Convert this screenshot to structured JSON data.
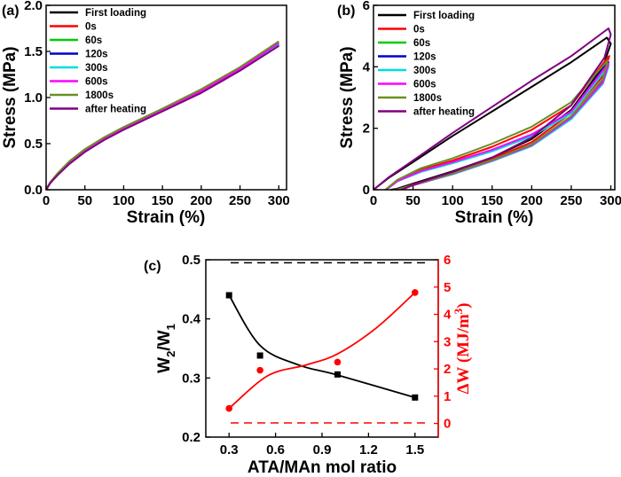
{
  "chart_data": [
    {
      "type": "line",
      "panel_label": "(a)",
      "xlabel": "Strain (%)",
      "ylabel": "Stress (MPa)",
      "xlim": [
        0,
        310
      ],
      "ylim": [
        0,
        2.0
      ],
      "xticks": [
        0,
        50,
        100,
        150,
        200,
        250,
        300
      ],
      "yticks": [
        0.0,
        0.5,
        1.0,
        1.5,
        2.0
      ],
      "xtick_labels": [
        "0",
        "50",
        "100",
        "150",
        "200",
        "250",
        "300"
      ],
      "ytick_labels": [
        "0.0",
        "0.5",
        "1.0",
        "1.5",
        "2.0"
      ],
      "legend_position": "top-left",
      "series": [
        {
          "name": "First loading",
          "color": "#000000",
          "x": [
            0,
            5,
            15,
            30,
            50,
            75,
            100,
            150,
            200,
            250,
            300
          ],
          "y": [
            0,
            0.07,
            0.17,
            0.29,
            0.42,
            0.55,
            0.66,
            0.86,
            1.06,
            1.3,
            1.57
          ]
        },
        {
          "name": "0s",
          "color": "#ff0000",
          "x": [
            0,
            5,
            15,
            30,
            50,
            75,
            100,
            150,
            200,
            250,
            300
          ],
          "y": [
            0,
            0.07,
            0.17,
            0.29,
            0.42,
            0.55,
            0.66,
            0.86,
            1.07,
            1.31,
            1.58
          ]
        },
        {
          "name": "60s",
          "color": "#00cc00",
          "x": [
            0,
            5,
            15,
            30,
            50,
            75,
            100,
            150,
            200,
            250,
            300
          ],
          "y": [
            0,
            0.07,
            0.18,
            0.3,
            0.43,
            0.56,
            0.67,
            0.87,
            1.08,
            1.32,
            1.6
          ]
        },
        {
          "name": "120s",
          "color": "#0000cc",
          "x": [
            0,
            5,
            15,
            30,
            50,
            75,
            100,
            150,
            200,
            250,
            300
          ],
          "y": [
            0,
            0.07,
            0.17,
            0.29,
            0.42,
            0.55,
            0.66,
            0.86,
            1.06,
            1.3,
            1.57
          ]
        },
        {
          "name": "300s",
          "color": "#00dddd",
          "x": [
            0,
            5,
            15,
            30,
            50,
            75,
            100,
            150,
            200,
            250,
            300
          ],
          "y": [
            0,
            0.07,
            0.17,
            0.29,
            0.42,
            0.55,
            0.66,
            0.86,
            1.07,
            1.31,
            1.58
          ]
        },
        {
          "name": "600s",
          "color": "#ff00ff",
          "x": [
            0,
            5,
            15,
            30,
            50,
            75,
            100,
            150,
            200,
            250,
            300
          ],
          "y": [
            0,
            0.07,
            0.17,
            0.29,
            0.42,
            0.55,
            0.66,
            0.86,
            1.07,
            1.31,
            1.59
          ]
        },
        {
          "name": "1800s",
          "color": "#6b8e23",
          "x": [
            0,
            5,
            15,
            30,
            50,
            75,
            100,
            150,
            200,
            250,
            300
          ],
          "y": [
            0,
            0.08,
            0.18,
            0.31,
            0.44,
            0.57,
            0.68,
            0.88,
            1.09,
            1.33,
            1.61
          ]
        },
        {
          "name": "after heating",
          "color": "#800080",
          "x": [
            0,
            5,
            15,
            30,
            50,
            75,
            100,
            150,
            200,
            250,
            300
          ],
          "y": [
            0,
            0.07,
            0.16,
            0.28,
            0.41,
            0.54,
            0.65,
            0.85,
            1.05,
            1.29,
            1.56
          ]
        }
      ]
    },
    {
      "type": "line",
      "panel_label": "(b)",
      "xlabel": "Strain (%)",
      "ylabel": "Stress (MPa)",
      "xlim": [
        0,
        305
      ],
      "ylim": [
        0,
        6
      ],
      "xticks": [
        0,
        50,
        100,
        150,
        200,
        250,
        300
      ],
      "yticks": [
        0,
        2,
        4,
        6
      ],
      "xtick_labels": [
        "0",
        "50",
        "100",
        "150",
        "200",
        "250",
        "300"
      ],
      "ytick_labels": [
        "0",
        "2",
        "4",
        "6"
      ],
      "legend_position": "top-left",
      "series": [
        {
          "name": "First loading",
          "color": "#000000",
          "x": [
            0,
            20,
            50,
            100,
            150,
            200,
            250,
            295,
            300,
            290,
            250,
            200,
            150,
            100,
            50,
            28,
            22
          ],
          "y": [
            0,
            0.4,
            0.9,
            1.75,
            2.55,
            3.35,
            4.15,
            4.95,
            4.75,
            4.0,
            2.6,
            1.65,
            1.05,
            0.6,
            0.2,
            0.02,
            0
          ]
        },
        {
          "name": "0s",
          "color": "#ff0000",
          "x": [
            15,
            30,
            60,
            100,
            150,
            200,
            250,
            296,
            298,
            290,
            250,
            200,
            150,
            100,
            60,
            35,
            28
          ],
          "y": [
            0,
            0.3,
            0.65,
            0.95,
            1.4,
            1.95,
            2.75,
            4.3,
            4.35,
            3.7,
            2.5,
            1.55,
            1.0,
            0.55,
            0.25,
            0.05,
            0
          ]
        },
        {
          "name": "60s",
          "color": "#00cc00",
          "x": [
            16,
            30,
            60,
            100,
            150,
            200,
            250,
            295,
            297,
            290,
            250,
            200,
            150,
            100,
            60,
            36,
            30
          ],
          "y": [
            0,
            0.28,
            0.62,
            0.9,
            1.3,
            1.8,
            2.55,
            4.0,
            4.05,
            3.5,
            2.35,
            1.45,
            0.95,
            0.52,
            0.22,
            0.05,
            0
          ]
        },
        {
          "name": "120s",
          "color": "#0000cc",
          "x": [
            16,
            30,
            60,
            100,
            150,
            200,
            250,
            295,
            297,
            290,
            250,
            200,
            150,
            100,
            60,
            36,
            30
          ],
          "y": [
            0,
            0.28,
            0.6,
            0.88,
            1.28,
            1.78,
            2.52,
            4.1,
            4.15,
            3.55,
            2.35,
            1.45,
            0.95,
            0.52,
            0.22,
            0.05,
            0
          ]
        },
        {
          "name": "300s",
          "color": "#00dddd",
          "x": [
            16,
            30,
            60,
            100,
            150,
            200,
            250,
            295,
            297,
            290,
            250,
            200,
            150,
            100,
            60,
            36,
            30
          ],
          "y": [
            0,
            0.27,
            0.58,
            0.86,
            1.25,
            1.74,
            2.48,
            3.95,
            4.0,
            3.45,
            2.3,
            1.42,
            0.93,
            0.5,
            0.22,
            0.05,
            0
          ]
        },
        {
          "name": "600s",
          "color": "#ff00ff",
          "x": [
            16,
            30,
            60,
            100,
            150,
            200,
            250,
            295,
            297,
            290,
            250,
            200,
            150,
            100,
            60,
            36,
            30
          ],
          "y": [
            0,
            0.28,
            0.61,
            0.9,
            1.3,
            1.8,
            2.55,
            4.05,
            4.1,
            3.5,
            2.35,
            1.45,
            0.95,
            0.52,
            0.22,
            0.05,
            0
          ]
        },
        {
          "name": "1800s",
          "color": "#6b8e23",
          "x": [
            15,
            30,
            60,
            100,
            150,
            200,
            250,
            294,
            296,
            290,
            250,
            200,
            150,
            100,
            60,
            36,
            30
          ],
          "y": [
            0,
            0.32,
            0.7,
            1.02,
            1.5,
            2.05,
            2.85,
            4.15,
            4.2,
            3.6,
            2.4,
            1.48,
            0.97,
            0.53,
            0.23,
            0.05,
            0
          ]
        },
        {
          "name": "after heating",
          "color": "#800080",
          "x": [
            0,
            20,
            50,
            100,
            150,
            200,
            250,
            297,
            300,
            292,
            250,
            200,
            150,
            100,
            60,
            40,
            35
          ],
          "y": [
            0,
            0.42,
            0.95,
            1.85,
            2.7,
            3.55,
            4.35,
            5.25,
            5.05,
            4.3,
            2.75,
            1.7,
            1.05,
            0.58,
            0.25,
            0.05,
            0
          ]
        }
      ]
    },
    {
      "type": "scatter",
      "panel_label": "(c)",
      "xlabel": "ATA/MAn mol ratio",
      "ylabel_left": "W2/W1",
      "ylabel_right": "ΔW (MJ/m3)",
      "xlim": [
        0.15,
        1.65
      ],
      "ylim_left": [
        0.2,
        0.5
      ],
      "ylim_right": [
        -0.5,
        6
      ],
      "xticks": [
        0.3,
        0.6,
        0.9,
        1.2,
        1.5
      ],
      "xtick_labels": [
        "0.3",
        "0.6",
        "0.9",
        "1.2",
        "1.5"
      ],
      "yticks_left": [
        0.2,
        0.3,
        0.4,
        0.5
      ],
      "ytick_labels_left": [
        "0.2",
        "0.3",
        "0.4",
        "0.5"
      ],
      "yticks_right": [
        0,
        1,
        2,
        3,
        4,
        5,
        6
      ],
      "ytick_labels_right": [
        "0",
        "1",
        "2",
        "3",
        "4",
        "5",
        "6"
      ],
      "left_color": "#000000",
      "right_color": "#ff0000",
      "series": [
        {
          "name": "W2/W1",
          "axis": "left",
          "marker": "square",
          "color": "#000000",
          "x": [
            0.3,
            0.5,
            1.0,
            1.5
          ],
          "y": [
            0.44,
            0.338,
            0.306,
            0.267
          ]
        },
        {
          "name": "ΔW",
          "axis": "right",
          "marker": "circle",
          "color": "#ff0000",
          "x": [
            0.3,
            0.5,
            1.0,
            1.5
          ],
          "y": [
            0.55,
            1.95,
            2.25,
            4.8
          ]
        }
      ],
      "reference_lines": [
        {
          "axis": "left",
          "value": 0.495,
          "color": "#000000",
          "style": "dashed"
        },
        {
          "axis": "right",
          "value": 0.02,
          "color": "#ff0000",
          "style": "dashed"
        }
      ]
    }
  ]
}
